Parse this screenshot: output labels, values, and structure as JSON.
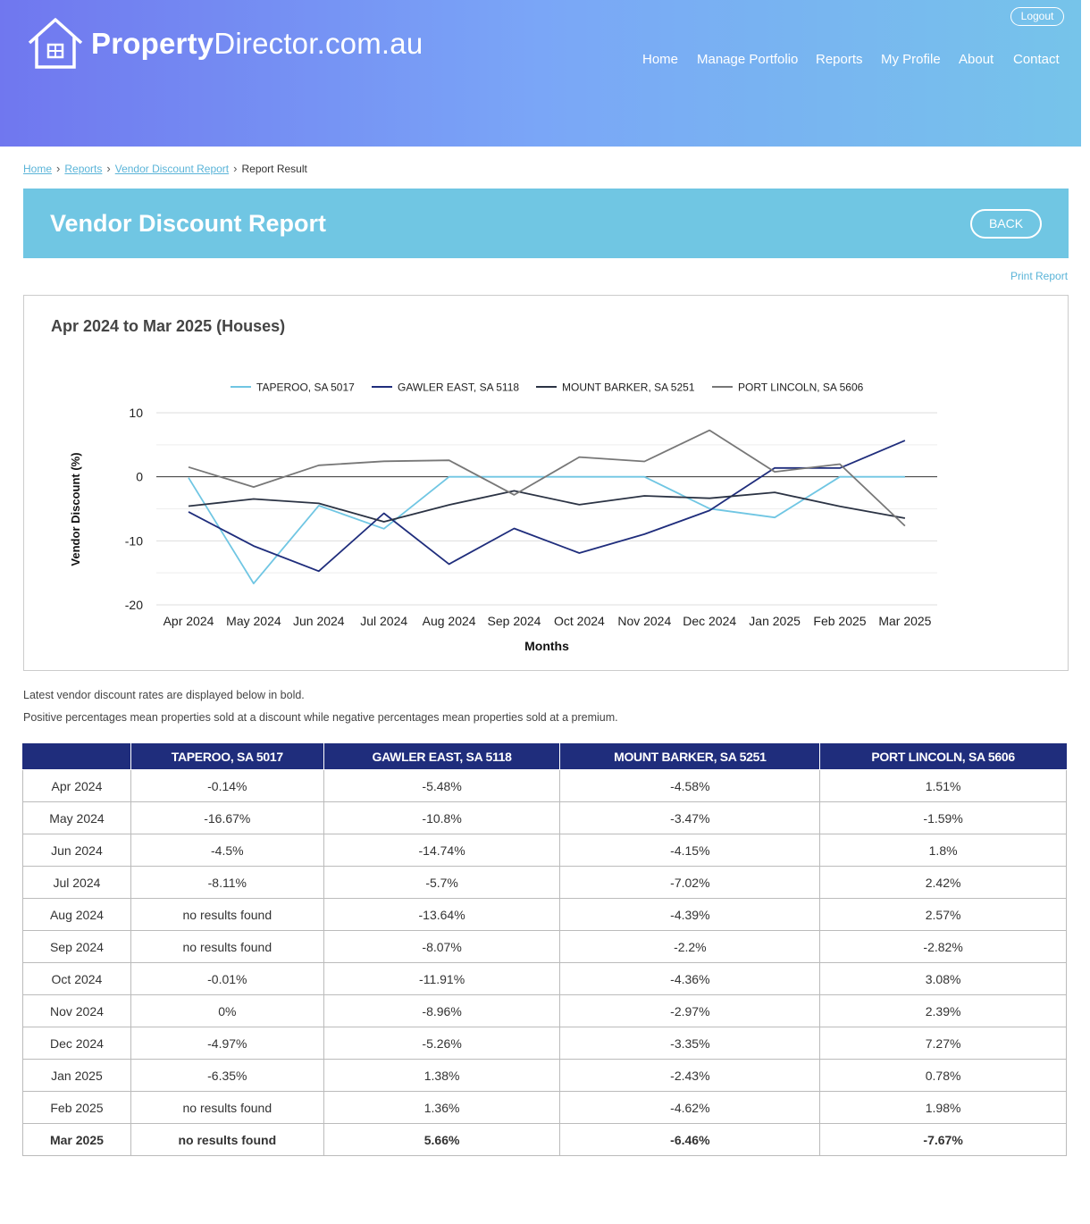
{
  "header": {
    "logo_bold": "Property",
    "logo_rest": "Director.com.au",
    "logout_label": "Logout",
    "nav": [
      "Home",
      "Manage Portfolio",
      "Reports",
      "My Profile",
      "About",
      "Contact"
    ]
  },
  "breadcrumb": {
    "items": [
      "Home",
      "Reports",
      "Vendor Discount Report"
    ],
    "current": "Report Result"
  },
  "banner": {
    "title": "Vendor Discount Report",
    "back_label": "BACK"
  },
  "print_label": "Print Report",
  "chart_data": {
    "type": "line",
    "title": "Apr 2024 to Mar 2025 (Houses)",
    "xlabel": "Months",
    "ylabel": "Vendor Discount (%)",
    "ylim": [
      -20,
      10
    ],
    "yticks": [
      10,
      0,
      -10,
      -20
    ],
    "legend_position": "top",
    "categories": [
      "Apr 2024",
      "May 2024",
      "Jun 2024",
      "Jul 2024",
      "Aug 2024",
      "Sep 2024",
      "Oct 2024",
      "Nov 2024",
      "Dec 2024",
      "Jan 2025",
      "Feb 2025",
      "Mar 2025"
    ],
    "series": [
      {
        "name": "TAPEROO, SA 5017",
        "color": "#70c6e3",
        "values": [
          -0.14,
          -16.67,
          -4.5,
          -8.11,
          0,
          0,
          -0.01,
          0,
          -4.97,
          -6.35,
          0,
          0
        ]
      },
      {
        "name": "GAWLER EAST, SA 5118",
        "color": "#1f2d7c",
        "values": [
          -5.48,
          -10.8,
          -14.74,
          -5.7,
          -13.64,
          -8.07,
          -11.91,
          -8.96,
          -5.26,
          1.38,
          1.36,
          5.66
        ]
      },
      {
        "name": "MOUNT BARKER, SA 5251",
        "color": "#2b3344",
        "values": [
          -4.58,
          -3.47,
          -4.15,
          -7.02,
          -4.39,
          -2.2,
          -4.36,
          -2.97,
          -3.35,
          -2.43,
          -4.62,
          -6.46
        ]
      },
      {
        "name": "PORT LINCOLN, SA 5606",
        "color": "#777777",
        "values": [
          1.51,
          -1.59,
          1.8,
          2.42,
          2.57,
          -2.82,
          3.08,
          2.39,
          7.27,
          0.78,
          1.98,
          -7.67
        ]
      }
    ]
  },
  "notes": [
    "Latest vendor discount rates are displayed below in bold.",
    "Positive percentages mean properties sold at a discount while negative percentages mean properties sold at a premium."
  ],
  "table": {
    "headers": [
      "",
      "TAPEROO, SA 5017",
      "GAWLER EAST, SA 5118",
      "MOUNT BARKER, SA 5251",
      "PORT LINCOLN, SA 5606"
    ],
    "rows": [
      [
        "Apr 2024",
        "-0.14%",
        "-5.48%",
        "-4.58%",
        "1.51%"
      ],
      [
        "May 2024",
        "-16.67%",
        "-10.8%",
        "-3.47%",
        "-1.59%"
      ],
      [
        "Jun 2024",
        "-4.5%",
        "-14.74%",
        "-4.15%",
        "1.8%"
      ],
      [
        "Jul 2024",
        "-8.11%",
        "-5.7%",
        "-7.02%",
        "2.42%"
      ],
      [
        "Aug 2024",
        "no results found",
        "-13.64%",
        "-4.39%",
        "2.57%"
      ],
      [
        "Sep 2024",
        "no results found",
        "-8.07%",
        "-2.2%",
        "-2.82%"
      ],
      [
        "Oct 2024",
        "-0.01%",
        "-11.91%",
        "-4.36%",
        "3.08%"
      ],
      [
        "Nov 2024",
        "0%",
        "-8.96%",
        "-2.97%",
        "2.39%"
      ],
      [
        "Dec 2024",
        "-4.97%",
        "-5.26%",
        "-3.35%",
        "7.27%"
      ],
      [
        "Jan 2025",
        "-6.35%",
        "1.38%",
        "-2.43%",
        "0.78%"
      ],
      [
        "Feb 2025",
        "no results found",
        "1.36%",
        "-4.62%",
        "1.98%"
      ],
      [
        "Mar 2025",
        "no results found",
        "5.66%",
        "-6.46%",
        "-7.67%"
      ]
    ],
    "bold_last_row": true
  }
}
